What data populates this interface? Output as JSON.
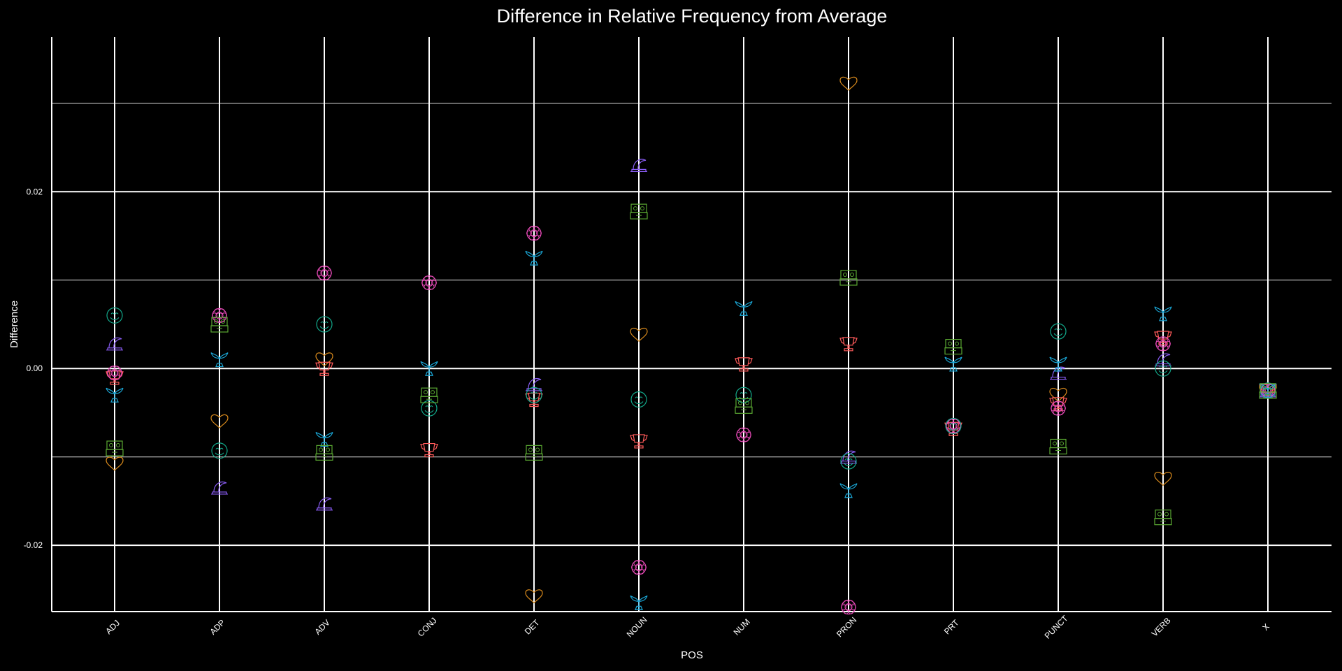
{
  "chart_data": {
    "type": "scatter",
    "title": "Difference in Relative Frequency from Average",
    "xlabel": "POS",
    "ylabel": "Difference",
    "categories": [
      "ADJ",
      "ADP",
      "ADV",
      "CONJ",
      "DET",
      "NOUN",
      "NUM",
      "PRON",
      "PRT",
      "PUNCT",
      "VERB",
      "X"
    ],
    "yticks": [
      {
        "value": 0.02,
        "label": "0.02"
      },
      {
        "value": 0.0,
        "label": "0.00"
      },
      {
        "value": -0.02,
        "label": "-0.02"
      }
    ],
    "minor_gridlines": [
      0.03,
      0.01,
      -0.01
    ],
    "ylim": [
      -0.0275,
      0.0375
    ],
    "grid": true,
    "background": "#000000",
    "foreground": "#ffffff",
    "series": [
      {
        "color": "#d98a1c",
        "shape": "heart-icon",
        "values": [
          -0.0108,
          -0.006,
          0.001,
          null,
          -0.0258,
          0.0038,
          null,
          0.0322,
          null,
          -0.003,
          -0.0125,
          -0.0025
        ]
      },
      {
        "color": "#ff5a5a",
        "shape": "trophy-icon",
        "values": [
          -0.001,
          null,
          0.0,
          -0.0092,
          -0.0035,
          -0.0082,
          0.0005,
          0.0028,
          -0.0068,
          -0.004,
          0.0035,
          -0.0025
        ]
      },
      {
        "color": "#e84ab8",
        "shape": "flower-icon",
        "values": [
          -0.0005,
          0.006,
          0.0108,
          0.0097,
          0.0153,
          -0.0225,
          -0.0075,
          -0.027,
          -0.0065,
          -0.0045,
          0.0028,
          -0.0025
        ]
      },
      {
        "color": "#8a5cf5",
        "shape": "hat-icon",
        "values": [
          0.0028,
          -0.0135,
          -0.0153,
          null,
          -0.0018,
          0.023,
          null,
          -0.01,
          null,
          -0.0005,
          0.001,
          -0.0025
        ]
      },
      {
        "color": "#1aa8d8",
        "shape": "plant-icon",
        "values": [
          -0.003,
          0.001,
          -0.008,
          0.0,
          0.0125,
          -0.0265,
          0.0068,
          -0.0138,
          0.0005,
          0.0005,
          0.0062,
          -0.0025
        ]
      },
      {
        "color": "#12a88a",
        "shape": "smiley-icon",
        "values": [
          0.006,
          -0.0093,
          0.005,
          -0.0045,
          -0.003,
          -0.0035,
          -0.003,
          -0.0105,
          -0.0065,
          0.0042,
          0.0,
          -0.0025
        ]
      },
      {
        "color": "#5aa832",
        "shape": "robot-icon",
        "values": [
          -0.009,
          0.005,
          -0.0095,
          -0.003,
          -0.0095,
          0.0178,
          -0.0042,
          0.0103,
          0.0025,
          -0.0088,
          -0.0168,
          -0.0025
        ]
      }
    ]
  }
}
